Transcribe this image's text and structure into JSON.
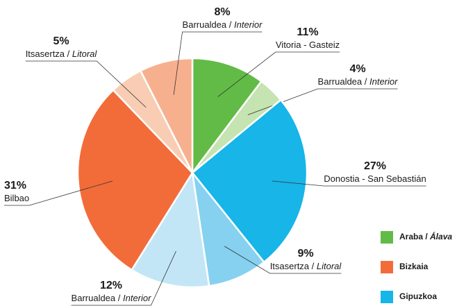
{
  "chart_data": {
    "type": "pie",
    "series": [
      {
        "name": "Araba / Álava",
        "color": "#62bb46",
        "categories": [
          "Vitoria - Gasteiz",
          "Barrualdea / Interior"
        ],
        "values": [
          11,
          4
        ],
        "value_labels": [
          "11%",
          "4%"
        ],
        "colors": [
          "#62bb46",
          "#c6e3b2"
        ]
      },
      {
        "name": "Gipuzkoa",
        "color": "#17b5e8",
        "categories": [
          "Donostia - San Sebastián",
          "Itsasertza / Litoral",
          "Barrualdea / Interior"
        ],
        "values": [
          27,
          9,
          12
        ],
        "value_labels": [
          "27%",
          "9%",
          "12%"
        ],
        "colors": [
          "#17b5e8",
          "#86d1ef",
          "#c3e6f7"
        ]
      },
      {
        "name": "Bizkaia",
        "color": "#f26c3a",
        "categories": [
          "Bilbao",
          "Itsasertza / Litoral",
          "Barrualdea / Interior"
        ],
        "values": [
          31,
          5,
          8
        ],
        "value_labels": [
          "31%",
          "5%",
          "8%"
        ],
        "colors": [
          "#f26c3a",
          "#f9cdb3",
          "#f7b08e"
        ]
      }
    ],
    "legend_order": [
      "Araba / Álava",
      "Bizkaia",
      "Gipuzkoa"
    ]
  }
}
